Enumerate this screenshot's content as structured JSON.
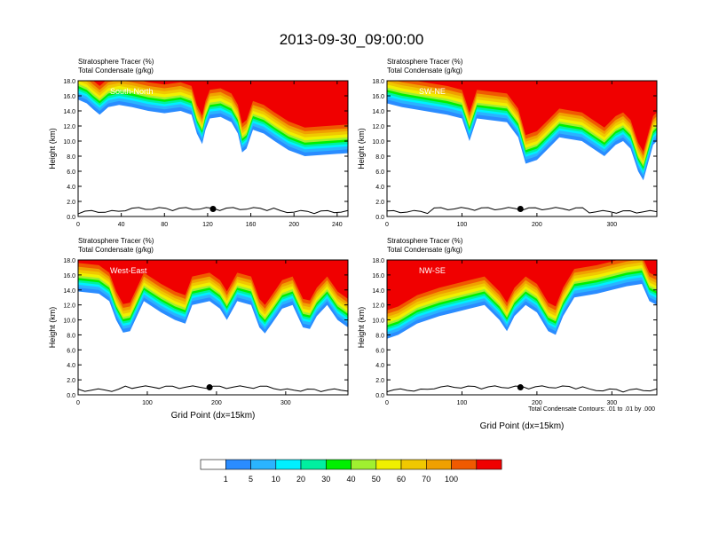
{
  "title": "2013-09-30_09:00:00",
  "colors": {
    "levels": [
      "#ffffff",
      "#2a8cff",
      "#2ab4ff",
      "#00f0ff",
      "#00f0a0",
      "#00f000",
      "#a0f030",
      "#f0f000",
      "#f0c800",
      "#f0a000",
      "#f05a00",
      "#f00000"
    ],
    "outline": "#000000"
  },
  "colorbar": {
    "labels": [
      "1",
      "5",
      "10",
      "20",
      "30",
      "40",
      "50",
      "60",
      "70",
      "100"
    ]
  },
  "footnote": "Total Condensate Contours: .01 to .01 by .000",
  "chart_data": [
    {
      "type": "heatmap",
      "name_top": "Stratosphere Tracer   (%)",
      "name_bottom": "Total Condensate   (g/kg)",
      "panel_label": "South-North",
      "xlabel": "",
      "ylabel": "Height (km)",
      "xlim": [
        0,
        250
      ],
      "ylim": [
        0,
        18
      ],
      "xticks": [
        "0",
        "40",
        "80",
        "120",
        "160",
        "200",
        "240"
      ],
      "yticks": [
        "0.0",
        "2.0",
        "4.0",
        "6.0",
        "8.0",
        "10.0",
        "12.0",
        "14.0",
        "16.0",
        "18.0"
      ],
      "marker_x": 125,
      "tracer_base_km": [
        [
          0,
          15.5
        ],
        [
          8,
          15.0
        ],
        [
          14,
          14.2
        ],
        [
          20,
          13.5
        ],
        [
          28,
          14.5
        ],
        [
          38,
          14.8
        ],
        [
          50,
          14.5
        ],
        [
          65,
          14.0
        ],
        [
          80,
          13.7
        ],
        [
          95,
          14.0
        ],
        [
          105,
          13.5
        ],
        [
          110,
          11.0
        ],
        [
          115,
          9.6
        ],
        [
          118,
          11.5
        ],
        [
          122,
          13.0
        ],
        [
          132,
          13.2
        ],
        [
          142,
          12.5
        ],
        [
          148,
          11.0
        ],
        [
          152,
          8.5
        ],
        [
          156,
          9.0
        ],
        [
          162,
          11.5
        ],
        [
          172,
          11.0
        ],
        [
          182,
          10.0
        ],
        [
          195,
          8.8
        ],
        [
          210,
          8.0
        ],
        [
          230,
          8.2
        ],
        [
          250,
          8.4
        ]
      ]
    },
    {
      "type": "heatmap",
      "name_top": "Stratosphere Tracer   (%)",
      "name_bottom": "Total Condensate   (g/kg)",
      "panel_label": "SW-NE",
      "xlabel": "",
      "ylabel": "Height (km)",
      "xlim": [
        0,
        360
      ],
      "ylim": [
        0,
        18
      ],
      "xticks": [
        "0",
        "100",
        "200",
        "300"
      ],
      "yticks": [
        "0.0",
        "2.0",
        "4.0",
        "6.0",
        "8.0",
        "10.0",
        "12.0",
        "14.0",
        "16.0",
        "18.0"
      ],
      "marker_x": 178,
      "tracer_base_km": [
        [
          0,
          15.0
        ],
        [
          20,
          14.5
        ],
        [
          50,
          14.0
        ],
        [
          80,
          13.5
        ],
        [
          100,
          13.0
        ],
        [
          105,
          11.5
        ],
        [
          110,
          10.0
        ],
        [
          120,
          13.0
        ],
        [
          160,
          12.5
        ],
        [
          175,
          10.5
        ],
        [
          185,
          7.0
        ],
        [
          200,
          7.5
        ],
        [
          215,
          9.0
        ],
        [
          230,
          10.5
        ],
        [
          260,
          10.0
        ],
        [
          275,
          9.0
        ],
        [
          290,
          8.0
        ],
        [
          305,
          9.5
        ],
        [
          315,
          10.0
        ],
        [
          325,
          9.0
        ],
        [
          335,
          6.0
        ],
        [
          342,
          4.8
        ],
        [
          348,
          7.0
        ],
        [
          355,
          9.5
        ],
        [
          360,
          10.0
        ]
      ]
    },
    {
      "type": "heatmap",
      "name_top": "Stratosphere Tracer   (%)",
      "name_bottom": "Total Condensate   (g/kg)",
      "panel_label": "West-East",
      "xlabel": "Grid Point (dx=15km)",
      "ylabel": "Height (km)",
      "xlim": [
        0,
        390
      ],
      "ylim": [
        0,
        18
      ],
      "xticks": [
        "0",
        "100",
        "200",
        "300"
      ],
      "yticks": [
        "0.0",
        "2.0",
        "4.0",
        "6.0",
        "8.0",
        "10.0",
        "12.0",
        "14.0",
        "16.0",
        "18.0"
      ],
      "marker_x": 190,
      "tracer_base_km": [
        [
          0,
          13.8
        ],
        [
          30,
          13.5
        ],
        [
          45,
          12.5
        ],
        [
          55,
          10.0
        ],
        [
          65,
          8.3
        ],
        [
          75,
          8.5
        ],
        [
          85,
          10.5
        ],
        [
          95,
          12.5
        ],
        [
          120,
          11.0
        ],
        [
          140,
          10.0
        ],
        [
          155,
          9.5
        ],
        [
          165,
          12.0
        ],
        [
          190,
          12.5
        ],
        [
          205,
          11.5
        ],
        [
          215,
          10.0
        ],
        [
          230,
          12.5
        ],
        [
          250,
          12.0
        ],
        [
          262,
          9.0
        ],
        [
          270,
          8.2
        ],
        [
          280,
          9.5
        ],
        [
          295,
          11.5
        ],
        [
          310,
          12.0
        ],
        [
          325,
          9.0
        ],
        [
          335,
          8.8
        ],
        [
          345,
          10.5
        ],
        [
          360,
          12.0
        ],
        [
          375,
          10.0
        ],
        [
          390,
          9.0
        ]
      ]
    },
    {
      "type": "heatmap",
      "name_top": "Stratosphere Tracer   (%)",
      "name_bottom": "Total Condensate   (g/kg)",
      "panel_label": "NW-SE",
      "xlabel": "Grid Point (dx=15km)",
      "ylabel": "Height (km)",
      "xlim": [
        0,
        360
      ],
      "ylim": [
        0,
        18
      ],
      "xticks": [
        "0",
        "100",
        "200",
        "300"
      ],
      "yticks": [
        "0.0",
        "2.0",
        "4.0",
        "6.0",
        "8.0",
        "10.0",
        "12.0",
        "14.0",
        "16.0",
        "18.0"
      ],
      "marker_x": 178,
      "tracer_base_km": [
        [
          0,
          7.5
        ],
        [
          15,
          8.0
        ],
        [
          40,
          9.5
        ],
        [
          70,
          10.5
        ],
        [
          90,
          11.0
        ],
        [
          110,
          11.5
        ],
        [
          130,
          12.0
        ],
        [
          150,
          10.0
        ],
        [
          160,
          8.5
        ],
        [
          170,
          10.5
        ],
        [
          185,
          12.0
        ],
        [
          200,
          11.0
        ],
        [
          215,
          8.5
        ],
        [
          225,
          8.0
        ],
        [
          235,
          10.5
        ],
        [
          250,
          13.0
        ],
        [
          280,
          13.5
        ],
        [
          300,
          14.0
        ],
        [
          320,
          14.5
        ],
        [
          340,
          14.8
        ],
        [
          350,
          12.5
        ],
        [
          360,
          12.0
        ]
      ]
    }
  ]
}
